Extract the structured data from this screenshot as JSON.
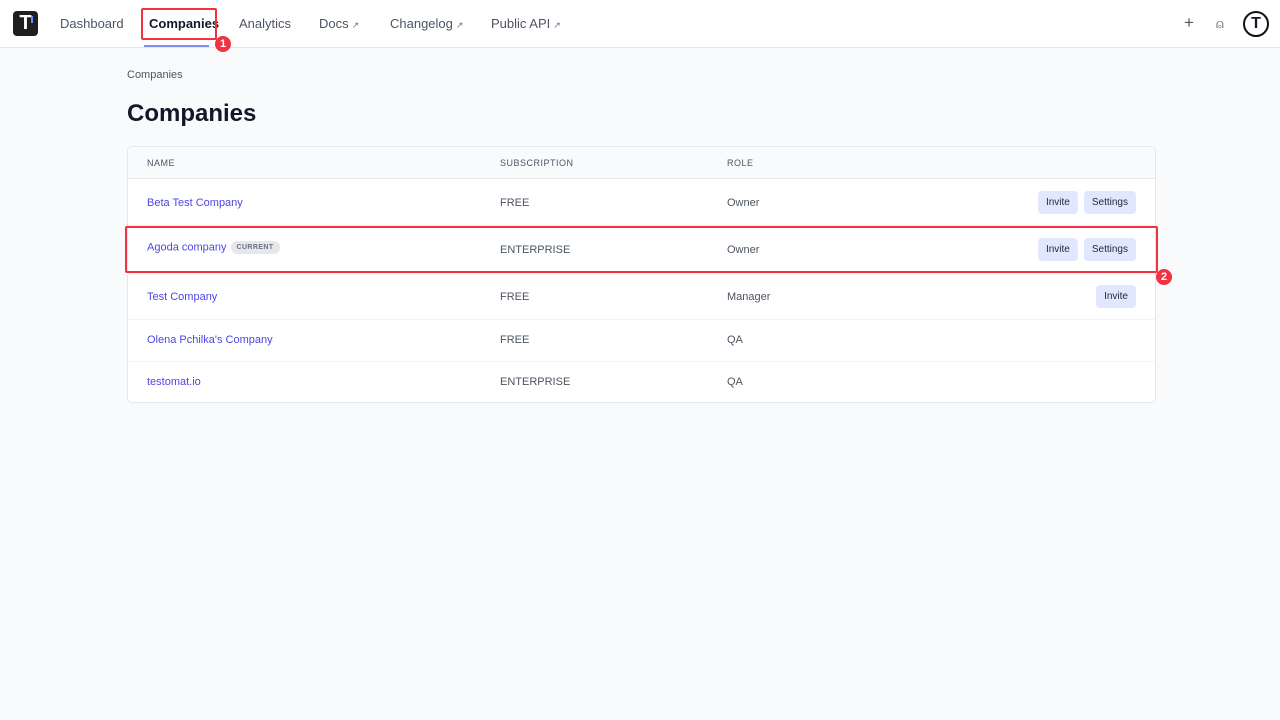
{
  "nav": {
    "items": [
      {
        "label": "Dashboard"
      },
      {
        "label": "Companies"
      },
      {
        "label": "Analytics"
      },
      {
        "label": "Docs"
      },
      {
        "label": "Changelog"
      },
      {
        "label": "Public API"
      }
    ],
    "logo": "T",
    "ext_icon": "↗"
  },
  "header_actions": {
    "plus": "+",
    "help": "⍝",
    "avatar": "T"
  },
  "breadcrumb": "Companies",
  "title": "Companies",
  "table": {
    "headers": [
      "NAME",
      "SUBSCRIPTION",
      "ROLE"
    ],
    "rows": [
      {
        "name": "Beta Test Company",
        "subscription": "FREE",
        "role": "Owner",
        "invite": "Invite",
        "settings": "Settings"
      },
      {
        "name": "Agoda company",
        "badge": "CURRENT",
        "subscription": "ENTERPRISE",
        "role": "Owner",
        "invite": "Invite",
        "settings": "Settings"
      },
      {
        "name": "Test Company",
        "subscription": "FREE",
        "role": "Manager",
        "invite": "Invite"
      },
      {
        "name": "Olena Pchilka's Company",
        "subscription": "FREE",
        "role": "QA"
      },
      {
        "name": "testomat.io",
        "subscription": "ENTERPRISE",
        "role": "QA"
      }
    ]
  },
  "annotations": [
    "1",
    "2"
  ],
  "colors": {
    "accent": "#4f46e5",
    "annotation": "#ef3340"
  }
}
